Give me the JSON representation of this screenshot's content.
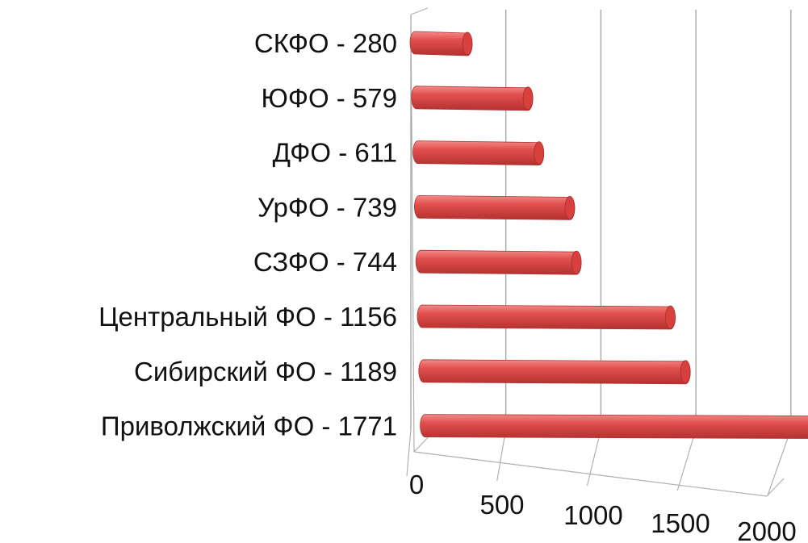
{
  "chart_data": {
    "type": "bar",
    "orientation": "horizontal",
    "style": "3d-cylinder",
    "categories": [
      "СКФО - 280",
      "ЮФО - 579",
      "ДФО - 611",
      "УрФО - 739",
      "СЗФО - 744",
      "Центральный ФО - 1156",
      "Сибирский ФО - 1189",
      "Приволжский ФО - 1771"
    ],
    "values": [
      280,
      579,
      611,
      739,
      744,
      1156,
      1189,
      1771
    ],
    "xlim": [
      0,
      2000
    ],
    "x_ticks": [
      0,
      500,
      1000,
      1500,
      2000
    ],
    "x_tick_labels": [
      "0",
      "500",
      "1000",
      "1500",
      "2000"
    ],
    "grid": true,
    "legend": "none",
    "colors": {
      "bar": "#e0504f",
      "bar_dark": "#b83a39",
      "bar_light": "#f07a78"
    },
    "title": "",
    "xlabel": "",
    "ylabel": ""
  }
}
